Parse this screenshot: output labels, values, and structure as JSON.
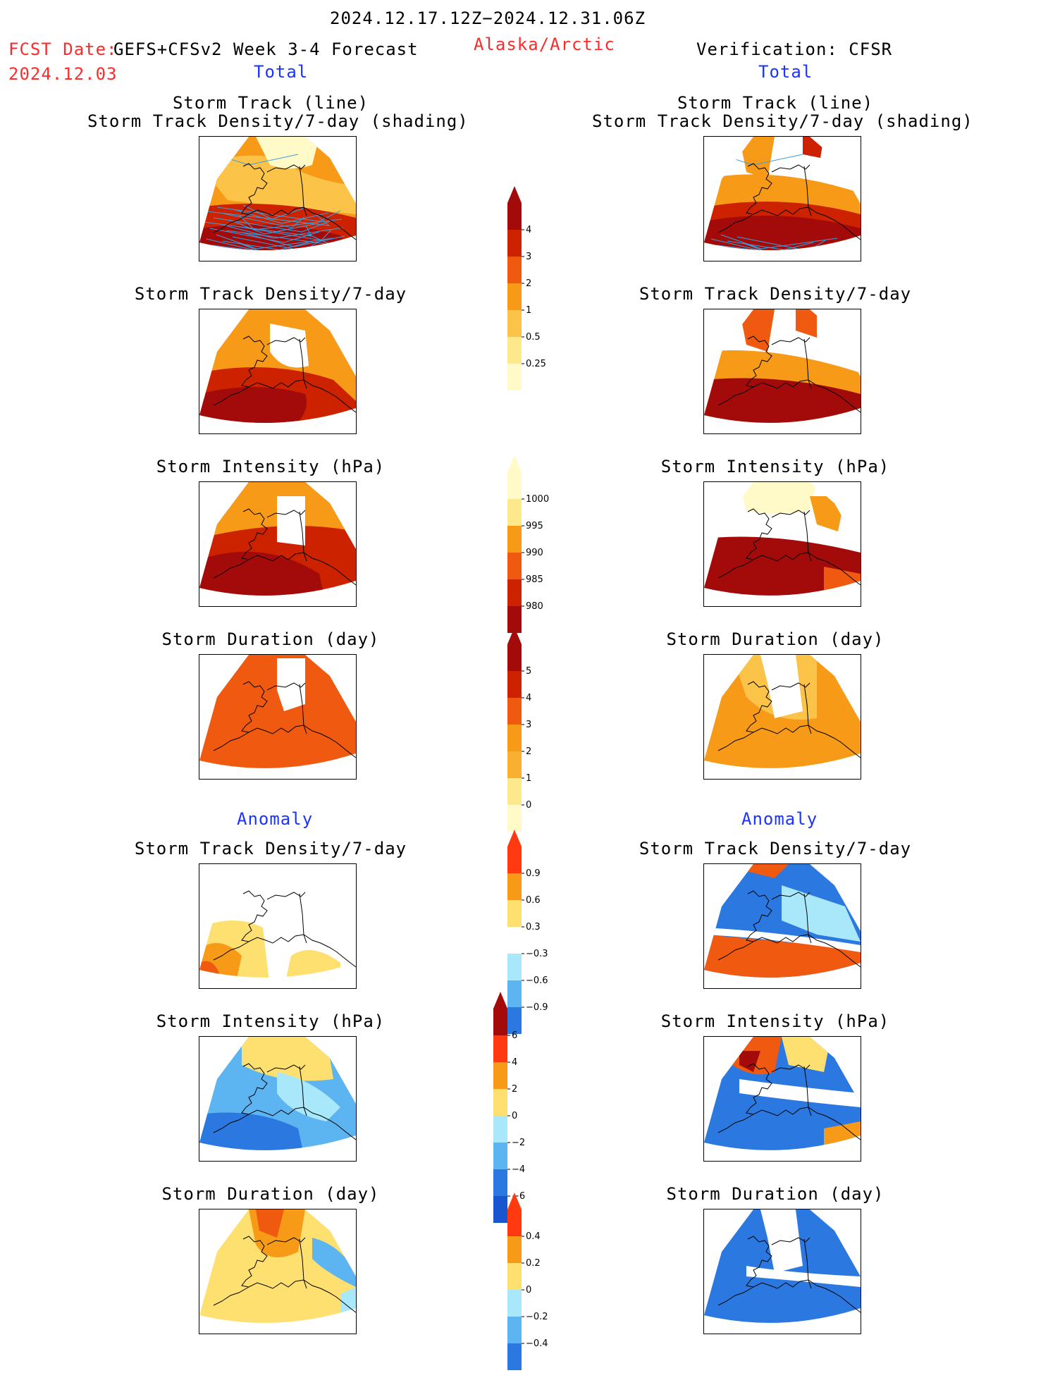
{
  "header": {
    "period": "2024.12.17.12Z−2024.12.31.06Z",
    "fcst_label": "FCST Date:",
    "fcst_date": "2024.12.03",
    "model": "GEFS+CFSv2 Week 3-4 Forecast",
    "region": "Alaska/Arctic",
    "verification": "Verification: CFSR",
    "total_left": "Total",
    "total_right": "Total",
    "anomaly_left": "Anomaly",
    "anomaly_right": "Anomaly"
  },
  "panels": {
    "track_line": "Storm Track (line)",
    "track_shading": "Storm Track Density/7-day (shading)",
    "density": "Storm Track Density/7-day",
    "intensity": "Storm Intensity (hPa)",
    "duration": "Storm Duration (day)"
  },
  "colorbars": [
    {
      "name": "density-total",
      "labels": [
        "4",
        "3",
        "2",
        "1",
        "0.5",
        "0.25"
      ],
      "colors": [
        "#a30a0a",
        "#cc2200",
        "#f05a10",
        "#f79a18",
        "#fbc348",
        "#fde88c",
        "#fffac8"
      ]
    },
    {
      "name": "intensity-total",
      "labels": [
        "1000",
        "995",
        "990",
        "985",
        "980"
      ],
      "colors": [
        "#fffac8",
        "#fde88c",
        "#f79a18",
        "#f05a10",
        "#cc2200",
        "#a30a0a"
      ]
    },
    {
      "name": "duration-total",
      "labels": [
        "5",
        "4",
        "3",
        "2",
        "1",
        "0"
      ],
      "colors": [
        "#a30a0a",
        "#cc2200",
        "#f05a10",
        "#f79a18",
        "#f9b030",
        "#fde88c",
        "#fffac8"
      ]
    },
    {
      "name": "density-anomaly",
      "labels": [
        "0.9",
        "0.6",
        "0.3",
        "−0.3",
        "−0.6",
        "−0.9"
      ],
      "colors": [
        "#ff3a10",
        "#f79a18",
        "#fde070",
        "#ffffff",
        "#a8e8fa",
        "#5cb4f0",
        "#2a78e0"
      ]
    },
    {
      "name": "intensity-anomaly",
      "labels": [
        "6",
        "4",
        "2",
        "0",
        "−2",
        "−4",
        "−6"
      ],
      "colors": [
        "#a30a0a",
        "#ff3a10",
        "#f79a18",
        "#fde070",
        "#a8e8fa",
        "#5cb4f0",
        "#2a78e0",
        "#1a55d0"
      ]
    },
    {
      "name": "duration-anomaly",
      "labels": [
        "0.4",
        "0.2",
        "0",
        "−0.2",
        "−0.4"
      ],
      "colors": [
        "#ff3a10",
        "#f79a18",
        "#fde070",
        "#a8e8fa",
        "#5cb4f0",
        "#2a78e0"
      ]
    }
  ],
  "colors": {
    "dark_red": "#a30a0a",
    "red": "#cc2200",
    "orange_red": "#f05a10",
    "orange": "#f79a18",
    "light_orange": "#fbc348",
    "yellow": "#fde070",
    "pale": "#fffac8",
    "light_blue": "#a8e8fa",
    "mid_blue": "#5cb4f0",
    "blue": "#2a78e0",
    "deep_blue": "#1a55d0",
    "track_line": "#3aa0e0"
  }
}
